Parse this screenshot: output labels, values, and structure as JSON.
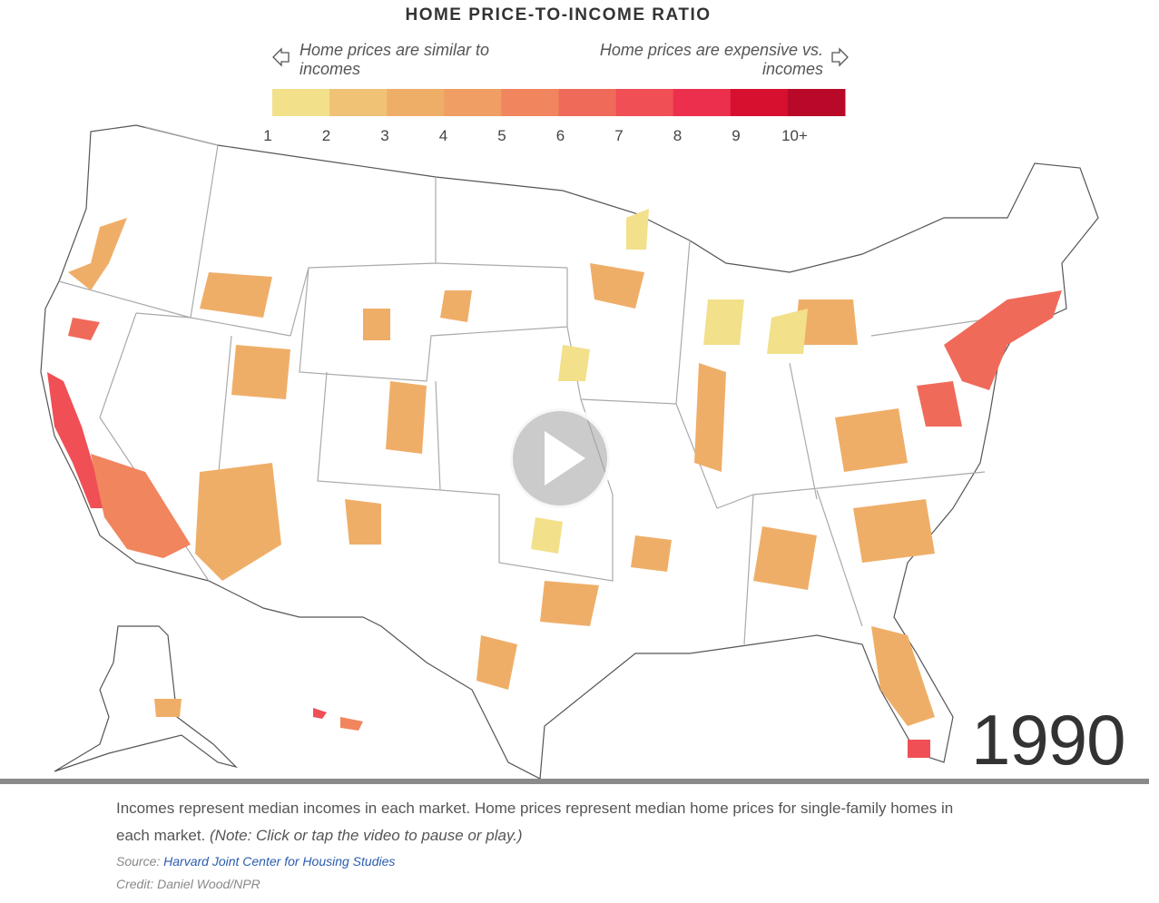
{
  "header": {
    "title": "HOME PRICE-TO-INCOME RATIO"
  },
  "legend": {
    "left_label": "Home prices are similar to incomes",
    "right_label": "Home prices are expensive vs. incomes",
    "ticks": [
      "1",
      "2",
      "3",
      "4",
      "5",
      "6",
      "7",
      "8",
      "9",
      "10+"
    ],
    "colors": [
      "#f2e08a",
      "#f0c276",
      "#efae68",
      "#f09e63",
      "#f1855e",
      "#f06a5a",
      "#ef4f55",
      "#ec2f4c",
      "#d8102f",
      "#b80a28"
    ]
  },
  "year": "1990",
  "caption": {
    "text": "Incomes represent median incomes in each market. Home prices represent median home prices for single-family homes in each market.",
    "note": "(Note: Click or tap the video to pause or play.)"
  },
  "source": {
    "label": "Source:",
    "link": "Harvard Joint Center for Housing Studies"
  },
  "credit": "Credit: Daniel Wood/NPR"
}
